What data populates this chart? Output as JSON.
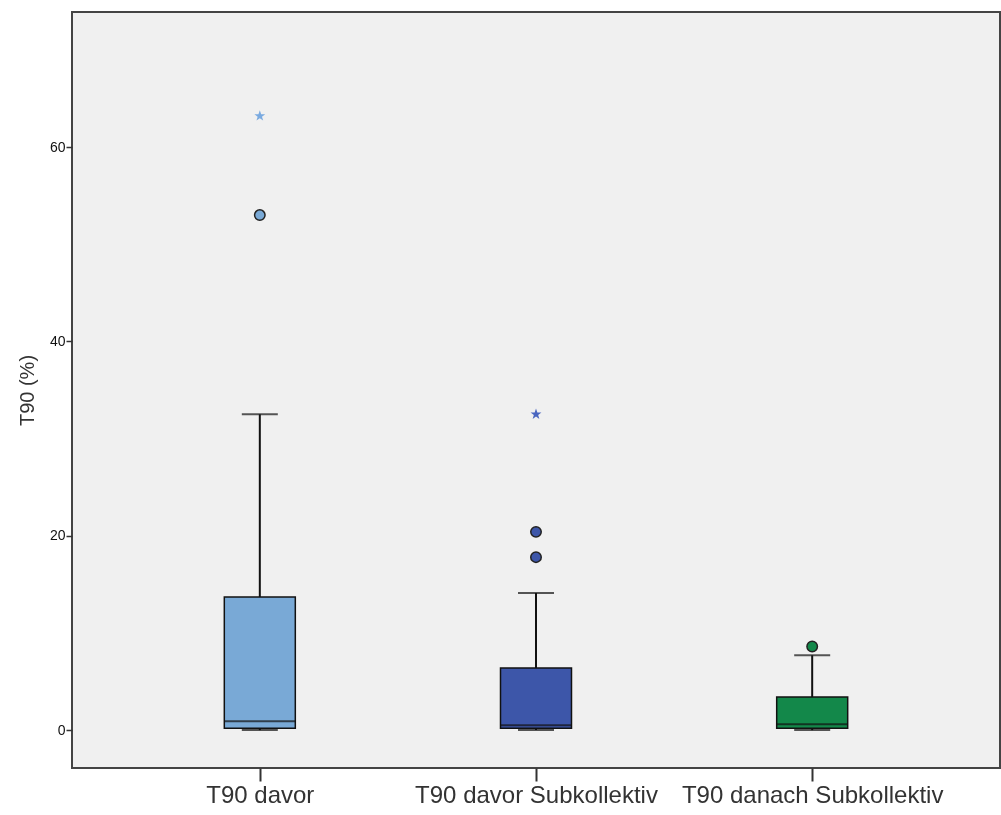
{
  "chart_data": {
    "type": "box",
    "ylabel": "T90 (%)",
    "categories": [
      "T90 davor",
      "T90 davor Subkollektiv",
      "T90 danach Subkollektiv"
    ],
    "ylim": [
      -3.9,
      73.9
    ],
    "yticks": [
      0,
      20,
      40,
      60
    ],
    "grid": false,
    "series": [
      {
        "marker": "circle",
        "colors": [
          "#79a9d6",
          "#3d56a9",
          "#13884a"
        ],
        "boxes": [
          {
            "low": 0,
            "q1": 0.2,
            "median": 0.9,
            "q3": 13.7,
            "high": 32.5,
            "outliers": [
              53.0
            ]
          },
          {
            "low": 0,
            "q1": 0.2,
            "median": 0.5,
            "q3": 6.4,
            "high": 14.1,
            "outliers": [
              20.4,
              17.8
            ]
          },
          {
            "low": 0,
            "q1": 0.2,
            "median": 0.6,
            "q3": 3.4,
            "high": 7.7,
            "outliers": [
              8.6
            ]
          }
        ]
      },
      {
        "type": "scatter",
        "marker": "star",
        "x": [
          "T90 davor",
          "T90 davor Subkollektiv"
        ],
        "values": [
          63.2,
          32.5
        ],
        "colors": [
          "#7aaae0",
          "#4a66c0"
        ]
      }
    ]
  }
}
